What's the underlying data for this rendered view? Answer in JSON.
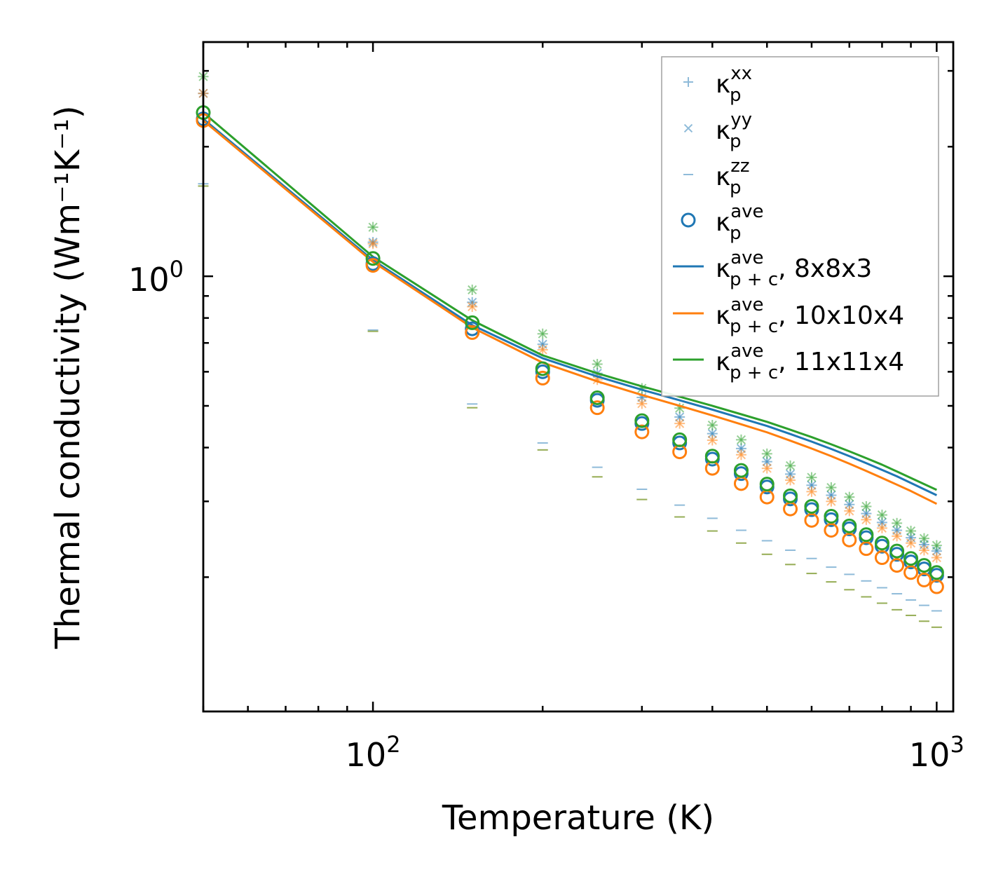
{
  "chart_data": {
    "type": "scatter",
    "title": "",
    "xlabel": "Temperature (K)",
    "ylabel": "Thermal conductivity (Wm⁻¹K⁻¹)",
    "xscale": "log",
    "yscale": "log",
    "xlim": [
      50,
      1070
    ],
    "ylim": [
      0.0975,
      3.5
    ],
    "grid": false,
    "x_tick_labels": [
      {
        "value": 100,
        "base": "10",
        "exp": "2"
      },
      {
        "value": 1000,
        "base": "10",
        "exp": "3"
      }
    ],
    "y_tick_labels": [
      {
        "value": 1.0,
        "base": "10",
        "exp": "0"
      }
    ],
    "legend_position": "top-right",
    "legend": [
      {
        "key": "kxx",
        "text": "κ",
        "sup": "xx",
        "sub": "p",
        "suffix": "",
        "kind": "plus",
        "color": "#1f77b4"
      },
      {
        "key": "kyy",
        "text": "κ",
        "sup": "yy",
        "sub": "p",
        "suffix": "",
        "kind": "cross",
        "color": "#1f77b4"
      },
      {
        "key": "kzz",
        "text": "κ",
        "sup": "zz",
        "sub": "p",
        "suffix": "",
        "kind": "dash",
        "color": "#1f77b4"
      },
      {
        "key": "kave",
        "text": "κ",
        "sup": "ave",
        "sub": "p",
        "suffix": "",
        "kind": "circle",
        "color": "#1f77b4"
      },
      {
        "key": "line8",
        "text": "κ",
        "sup": "ave",
        "sub": "p + c",
        "suffix": ", 8x8x3",
        "kind": "line",
        "color": "#1f77b4"
      },
      {
        "key": "line10",
        "text": "κ",
        "sup": "ave",
        "sub": "p + c",
        "suffix": ", 10x10x4",
        "kind": "line",
        "color": "#ff7f0e"
      },
      {
        "key": "line11",
        "text": "κ",
        "sup": "ave",
        "sub": "p + c",
        "suffix": ", 11x11x4",
        "kind": "line",
        "color": "#2ca02c"
      }
    ],
    "x": [
      50,
      100,
      150,
      200,
      250,
      300,
      350,
      400,
      450,
      500,
      550,
      600,
      650,
      700,
      750,
      800,
      850,
      900,
      950,
      1000
    ],
    "series": [
      {
        "name": "8x8x3",
        "color": "#1f77b4",
        "kxx": [
          2.66,
          1.2,
          0.87,
          0.695,
          0.595,
          0.523,
          0.471,
          0.431,
          0.398,
          0.371,
          0.347,
          0.327,
          0.31,
          0.295,
          0.281,
          0.268,
          0.257,
          0.247,
          0.238,
          0.23
        ],
        "kyy": [
          2.66,
          1.2,
          0.87,
          0.695,
          0.595,
          0.523,
          0.471,
          0.431,
          0.398,
          0.371,
          0.347,
          0.327,
          0.31,
          0.295,
          0.281,
          0.268,
          0.257,
          0.247,
          0.238,
          0.23
        ],
        "kzz": [
          1.64,
          0.75,
          0.505,
          0.41,
          0.36,
          0.32,
          0.294,
          0.274,
          0.257,
          0.243,
          0.231,
          0.221,
          0.211,
          0.203,
          0.196,
          0.189,
          0.183,
          0.177,
          0.172,
          0.167
        ],
        "kave": [
          2.32,
          1.07,
          0.755,
          0.6,
          0.515,
          0.455,
          0.41,
          0.376,
          0.348,
          0.324,
          0.304,
          0.287,
          0.272,
          0.259,
          0.247,
          0.236,
          0.226,
          0.217,
          0.209,
          0.202
        ],
        "kpc": [
          2.32,
          1.09,
          0.77,
          0.645,
          0.585,
          0.545,
          0.515,
          0.49,
          0.468,
          0.449,
          0.43,
          0.413,
          0.397,
          0.382,
          0.368,
          0.355,
          0.343,
          0.331,
          0.32,
          0.31
        ]
      },
      {
        "name": "10x10x4",
        "color": "#ff7f0e",
        "kxx": [
          2.66,
          1.19,
          0.85,
          0.675,
          0.575,
          0.506,
          0.455,
          0.416,
          0.385,
          0.358,
          0.336,
          0.316,
          0.3,
          0.285,
          0.272,
          0.26,
          0.249,
          0.24,
          0.231,
          0.222
        ],
        "kyy": [
          2.66,
          1.19,
          0.85,
          0.675,
          0.575,
          0.506,
          0.455,
          0.416,
          0.385,
          0.358,
          0.336,
          0.316,
          0.3,
          0.285,
          0.272,
          0.26,
          0.249,
          0.24,
          0.231,
          0.222
        ],
        "kzz": [
          1.62,
          0.745,
          0.495,
          0.395,
          0.342,
          0.303,
          0.276,
          0.256,
          0.24,
          0.226,
          0.214,
          0.204,
          0.195,
          0.187,
          0.18,
          0.174,
          0.168,
          0.163,
          0.158,
          0.153
        ],
        "kave": [
          2.3,
          1.06,
          0.74,
          0.58,
          0.495,
          0.435,
          0.391,
          0.358,
          0.33,
          0.307,
          0.288,
          0.271,
          0.257,
          0.244,
          0.233,
          0.222,
          0.213,
          0.205,
          0.197,
          0.19
        ],
        "kpc": [
          2.3,
          1.08,
          0.76,
          0.63,
          0.57,
          0.53,
          0.5,
          0.475,
          0.453,
          0.434,
          0.415,
          0.398,
          0.382,
          0.367,
          0.353,
          0.34,
          0.328,
          0.317,
          0.306,
          0.296
        ]
      },
      {
        "name": "11x11x4",
        "color": "#2ca02c",
        "kxx": [
          2.91,
          1.3,
          0.93,
          0.735,
          0.625,
          0.549,
          0.494,
          0.451,
          0.417,
          0.387,
          0.363,
          0.341,
          0.323,
          0.307,
          0.292,
          0.279,
          0.267,
          0.256,
          0.246,
          0.237
        ],
        "kyy": [
          2.91,
          1.3,
          0.93,
          0.735,
          0.625,
          0.549,
          0.494,
          0.451,
          0.417,
          0.387,
          0.363,
          0.341,
          0.323,
          0.307,
          0.292,
          0.279,
          0.267,
          0.256,
          0.246,
          0.237
        ],
        "kzz": [
          1.62,
          0.745,
          0.495,
          0.395,
          0.342,
          0.303,
          0.276,
          0.256,
          0.24,
          0.226,
          0.214,
          0.204,
          0.195,
          0.187,
          0.18,
          0.174,
          0.168,
          0.163,
          0.158,
          0.153
        ],
        "kave": [
          2.4,
          1.1,
          0.78,
          0.61,
          0.522,
          0.462,
          0.417,
          0.382,
          0.354,
          0.329,
          0.309,
          0.292,
          0.277,
          0.263,
          0.251,
          0.24,
          0.23,
          0.221,
          0.213,
          0.205
        ],
        "kpc": [
          2.4,
          1.11,
          0.79,
          0.655,
          0.595,
          0.555,
          0.525,
          0.5,
          0.478,
          0.459,
          0.44,
          0.423,
          0.407,
          0.392,
          0.378,
          0.365,
          0.352,
          0.34,
          0.329,
          0.319
        ]
      }
    ]
  }
}
